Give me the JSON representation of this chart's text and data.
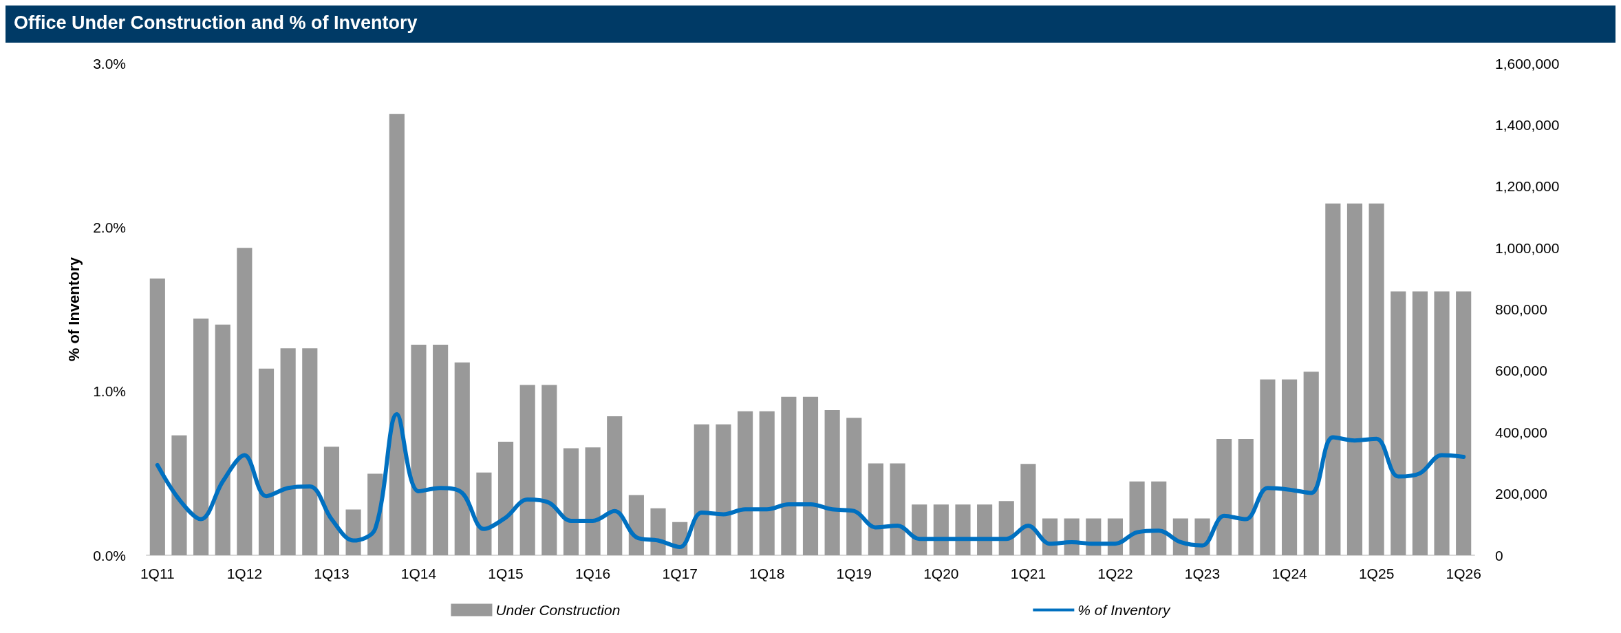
{
  "chart_data": {
    "type": "bar",
    "title": "Office Under Construction and % of Inventory",
    "ylabel": "% of Inventory",
    "categories": [
      "1Q11",
      null,
      null,
      null,
      "1Q12",
      null,
      null,
      null,
      "1Q13",
      null,
      null,
      null,
      "1Q14",
      null,
      null,
      null,
      "1Q15",
      null,
      null,
      null,
      "1Q16",
      null,
      null,
      null,
      "1Q17",
      null,
      null,
      null,
      "1Q18",
      null,
      null,
      null,
      "1Q19",
      null,
      null,
      null,
      "1Q20",
      null,
      null,
      null,
      "1Q21",
      null,
      null,
      null,
      "1Q22",
      null,
      null,
      null,
      "1Q23",
      null,
      null,
      null,
      "1Q24",
      null,
      null,
      null,
      "1Q25",
      null,
      null,
      null,
      "1Q26"
    ],
    "series": [
      {
        "name": "Under Construction",
        "axis": "y2",
        "color": "#999999",
        "values": [
          900000,
          390000,
          770000,
          750000,
          1000000,
          607000,
          673000,
          673000,
          353000,
          149000,
          265000,
          1435000,
          685000,
          685000,
          627000,
          269000,
          369000,
          554000,
          554000,
          348000,
          351000,
          452000,
          196000,
          153000,
          108000,
          426000,
          426000,
          468000,
          468000,
          515000,
          515000,
          472000,
          447000,
          299000,
          299000,
          165000,
          165000,
          165000,
          165000,
          176000,
          297000,
          120000,
          120000,
          120000,
          120000,
          240000,
          240000,
          120000,
          120000,
          378000,
          378000,
          572000,
          572000,
          597000,
          1144000,
          1144000,
          1144000,
          858000,
          858000,
          858000,
          858000
        ]
      },
      {
        "name": "% of Inventory",
        "type": "line",
        "color": "#0070c0",
        "values": [
          0.55,
          0.34,
          0.22,
          0.45,
          0.61,
          0.36,
          0.41,
          0.42,
          0.22,
          0.09,
          0.16,
          0.86,
          0.39,
          0.41,
          0.38,
          0.16,
          0.23,
          0.34,
          0.32,
          0.21,
          0.21,
          0.27,
          0.11,
          0.09,
          0.05,
          0.26,
          0.25,
          0.28,
          0.28,
          0.31,
          0.31,
          0.28,
          0.27,
          0.17,
          0.18,
          0.1,
          0.1,
          0.1,
          0.1,
          0.1,
          0.18,
          0.07,
          0.08,
          0.07,
          0.07,
          0.14,
          0.15,
          0.08,
          0.06,
          0.24,
          0.22,
          0.41,
          0.4,
          0.38,
          0.72,
          0.7,
          0.71,
          0.48,
          0.5,
          0.61,
          0.6
        ]
      }
    ],
    "ylim": [
      0,
      3
    ],
    "yticks": [
      {
        "value": 0,
        "label": "0.0%"
      },
      {
        "value": 1,
        "label": "1.0%"
      },
      {
        "value": 2,
        "label": "2.0%"
      },
      {
        "value": 3,
        "label": "3.0%"
      }
    ],
    "y2lim": [
      0,
      1600000
    ],
    "y2ticks": [
      0,
      {
        "value": 200000,
        "label": "200,000"
      },
      {
        "value": 400000,
        "label": "400,000"
      },
      {
        "value": 600000,
        "label": "600,000"
      },
      {
        "value": 800000,
        "label": "800,000"
      },
      {
        "value": 1000000,
        "label": "1,000,000"
      },
      {
        "value": 1200000,
        "label": "1,200,000"
      },
      {
        "value": 1400000,
        "label": "1,400,000"
      },
      {
        "value": 1600000,
        "label": "1,600,000"
      }
    ],
    "grid": false,
    "legend": "bottom",
    "marker": "none"
  }
}
